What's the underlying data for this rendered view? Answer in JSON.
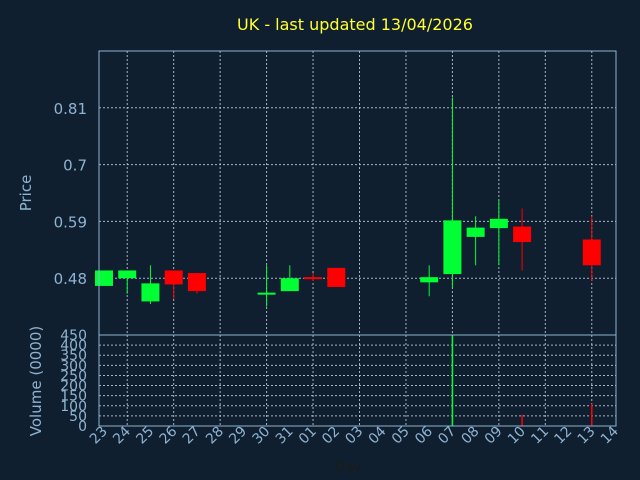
{
  "chart_data": {
    "type": "candlestick",
    "title": "UK - last updated 13/04/2026",
    "xlabel": "Day",
    "price_panel": {
      "ylabel": "Price",
      "yticks": [
        0.48,
        0.59,
        0.7,
        0.81
      ],
      "ylim": [
        0.37,
        0.92
      ],
      "grid": true
    },
    "volume_panel": {
      "ylabel": "Volume (0000)",
      "yticks": [
        0,
        50,
        100,
        150,
        200,
        250,
        300,
        350,
        400,
        450
      ],
      "ylim": [
        0,
        450
      ],
      "grid": true
    },
    "x_ticks": [
      "23",
      "24",
      "25",
      "26",
      "27",
      "28",
      "29",
      "30",
      "31",
      "01",
      "02",
      "03",
      "04",
      "05",
      "06",
      "07",
      "08",
      "09",
      "10",
      "11",
      "12",
      "13",
      "14"
    ],
    "up_color": "#00ff33",
    "down_color": "#ff0000",
    "candles": [
      {
        "day": "23",
        "open": 0.465,
        "close": 0.495,
        "high": 0.495,
        "low": 0.465
      },
      {
        "day": "24",
        "open": 0.48,
        "close": 0.495,
        "high": 0.495,
        "low": 0.45
      },
      {
        "day": "25",
        "open": 0.435,
        "close": 0.47,
        "high": 0.505,
        "low": 0.43
      },
      {
        "day": "26",
        "open": 0.495,
        "close": 0.468,
        "high": 0.495,
        "low": 0.44
      },
      {
        "day": "27",
        "open": 0.49,
        "close": 0.455,
        "high": 0.49,
        "low": 0.45
      },
      {
        "day": "30",
        "open": 0.45,
        "close": 0.452,
        "high": 0.505,
        "low": 0.425
      },
      {
        "day": "31",
        "open": 0.455,
        "close": 0.48,
        "high": 0.505,
        "low": 0.455
      },
      {
        "day": "01",
        "open": 0.482,
        "close": 0.48,
        "high": 0.49,
        "low": 0.475
      },
      {
        "day": "02",
        "open": 0.5,
        "close": 0.463,
        "high": 0.5,
        "low": 0.463
      },
      {
        "day": "06",
        "open": 0.472,
        "close": 0.482,
        "high": 0.505,
        "low": 0.445
      },
      {
        "day": "07",
        "open": 0.488,
        "close": 0.592,
        "high": 0.83,
        "low": 0.46
      },
      {
        "day": "08",
        "open": 0.56,
        "close": 0.578,
        "high": 0.6,
        "low": 0.505
      },
      {
        "day": "09",
        "open": 0.577,
        "close": 0.595,
        "high": 0.63,
        "low": 0.505
      },
      {
        "day": "10",
        "open": 0.58,
        "close": 0.55,
        "high": 0.615,
        "low": 0.495
      },
      {
        "day": "13",
        "open": 0.555,
        "close": 0.505,
        "high": 0.6,
        "low": 0.475
      }
    ],
    "volumes": [
      {
        "day": "07",
        "value": 450,
        "color": "#00ff33"
      },
      {
        "day": "10",
        "value": 55,
        "color": "#ff0000"
      },
      {
        "day": "13",
        "value": 110,
        "color": "#ff0000"
      }
    ]
  }
}
